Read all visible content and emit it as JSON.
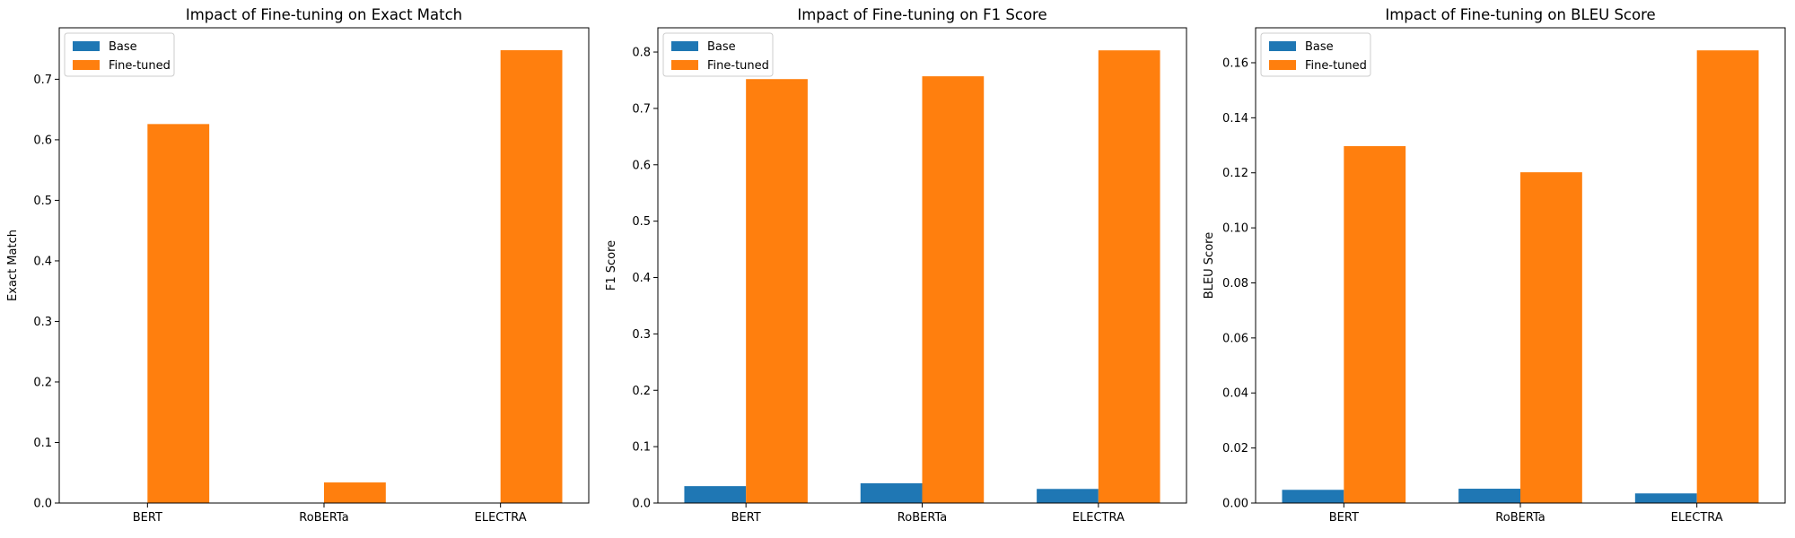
{
  "colors": {
    "base": "#1f77b4",
    "finetuned": "#ff7f0e"
  },
  "chart_data": [
    {
      "type": "bar",
      "title": "Impact of Fine-tuning on Exact Match",
      "xlabel": "",
      "ylabel": "Exact Match",
      "categories": [
        "BERT",
        "RoBERTa",
        "ELECTRA"
      ],
      "series": [
        {
          "name": "Base",
          "values": [
            0.0,
            0.0,
            0.0
          ]
        },
        {
          "name": "Fine-tuned",
          "values": [
            0.626,
            0.034,
            0.748
          ]
        }
      ],
      "ylim": [
        0,
        0.785
      ],
      "yticks": [
        0.0,
        0.1,
        0.2,
        0.3,
        0.4,
        0.5,
        0.6,
        0.7
      ],
      "ytick_labels": [
        "0.0",
        "0.1",
        "0.2",
        "0.3",
        "0.4",
        "0.5",
        "0.6",
        "0.7"
      ],
      "legend": "top-left",
      "grid": false
    },
    {
      "type": "bar",
      "title": "Impact of Fine-tuning on F1 Score",
      "xlabel": "",
      "ylabel": "F1 Score",
      "categories": [
        "BERT",
        "RoBERTa",
        "ELECTRA"
      ],
      "series": [
        {
          "name": "Base",
          "values": [
            0.03,
            0.035,
            0.025
          ]
        },
        {
          "name": "Fine-tuned",
          "values": [
            0.752,
            0.757,
            0.803
          ]
        }
      ],
      "ylim": [
        0,
        0.843
      ],
      "yticks": [
        0.0,
        0.1,
        0.2,
        0.3,
        0.4,
        0.5,
        0.6,
        0.7,
        0.8
      ],
      "ytick_labels": [
        "0.0",
        "0.1",
        "0.2",
        "0.3",
        "0.4",
        "0.5",
        "0.6",
        "0.7",
        "0.8"
      ],
      "legend": "top-left",
      "grid": false
    },
    {
      "type": "bar",
      "title": "Impact of Fine-tuning on BLEU Score",
      "xlabel": "",
      "ylabel": "BLEU Score",
      "categories": [
        "BERT",
        "RoBERTa",
        "ELECTRA"
      ],
      "series": [
        {
          "name": "Base",
          "values": [
            0.0048,
            0.0052,
            0.0035
          ]
        },
        {
          "name": "Fine-tuned",
          "values": [
            0.1297,
            0.1202,
            0.1645
          ]
        }
      ],
      "ylim": [
        0,
        0.1727
      ],
      "yticks": [
        0.0,
        0.02,
        0.04,
        0.06,
        0.08,
        0.1,
        0.12,
        0.14,
        0.16
      ],
      "ytick_labels": [
        "0.00",
        "0.02",
        "0.04",
        "0.06",
        "0.08",
        "0.10",
        "0.12",
        "0.14",
        "0.16"
      ],
      "legend": "top-left",
      "grid": false
    }
  ]
}
